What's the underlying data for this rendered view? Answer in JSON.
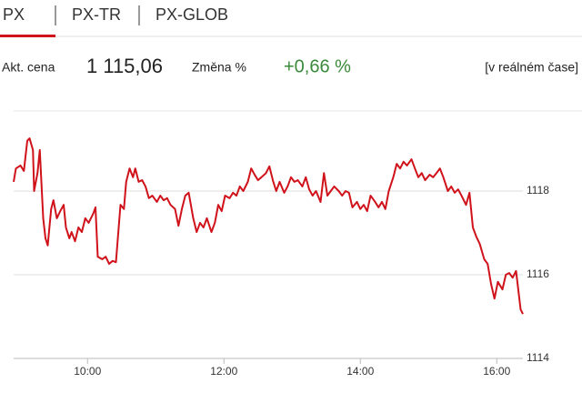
{
  "tabs": [
    "PX",
    "PX-TR",
    "PX-GLOB"
  ],
  "quote": {
    "price_label": "Akt. cena",
    "price": "1 115,06",
    "change_label": "Změna %",
    "change": "+0,66 %",
    "realtime": "[v reálném čase]"
  },
  "chart_data": {
    "type": "line",
    "color": "#d0121b",
    "grid": true,
    "x": [
      535,
      537,
      541,
      544,
      547,
      549,
      552,
      553,
      556,
      558,
      561,
      563,
      565,
      568,
      570,
      573,
      576,
      579,
      581,
      584,
      586,
      589,
      592,
      595,
      598,
      601,
      605,
      607,
      609,
      613,
      616,
      619,
      622,
      625,
      629,
      632,
      634,
      637,
      640,
      642,
      645,
      648,
      651,
      654,
      657,
      661,
      664,
      667,
      670,
      673,
      677,
      680,
      683,
      686,
      689,
      693,
      696,
      699,
      702,
      705,
      709,
      712,
      715,
      718,
      721,
      725,
      728,
      731,
      734,
      737,
      741,
      744,
      747,
      750,
      753,
      757,
      760,
      763,
      766,
      769,
      773,
      776,
      779,
      782,
      785,
      789,
      792,
      795,
      798,
      801,
      805,
      808,
      811,
      814,
      817,
      821,
      824,
      827,
      830,
      833,
      837,
      840,
      843,
      846,
      849,
      853,
      856,
      859,
      862,
      865,
      869,
      872,
      875,
      878,
      881,
      885,
      888,
      891,
      894,
      897,
      901,
      904,
      907,
      910,
      913,
      917,
      920,
      923,
      926,
      929,
      933,
      936,
      939,
      942,
      945,
      949,
      952,
      955,
      958,
      961,
      965,
      968,
      971,
      974,
      977,
      981,
      983
    ],
    "values": [
      1118.22,
      1118.54,
      1118.61,
      1118.48,
      1119.2,
      1119.26,
      1118.98,
      1118,
      1118.43,
      1118.98,
      1117.35,
      1116.87,
      1116.7,
      1117.57,
      1117.78,
      1117.35,
      1117.52,
      1117.67,
      1117.13,
      1116.87,
      1117.02,
      1116.8,
      1117.13,
      1117.02,
      1117.35,
      1117.24,
      1117.46,
      1117.61,
      1116.43,
      1116.37,
      1116.43,
      1116.26,
      1116.33,
      1116.3,
      1117.67,
      1117.57,
      1118.22,
      1118.54,
      1118.33,
      1118.54,
      1118.22,
      1118.26,
      1118.11,
      1117.83,
      1117.89,
      1117.74,
      1117.89,
      1117.78,
      1117.83,
      1117.67,
      1117.57,
      1117.17,
      1117.57,
      1117.89,
      1117.96,
      1117.35,
      1117.02,
      1117.24,
      1117.13,
      1117.35,
      1117.02,
      1117.24,
      1117.67,
      1117.52,
      1117.89,
      1117.83,
      1117.96,
      1117.89,
      1118.11,
      1118,
      1118.22,
      1118.54,
      1118.39,
      1118.26,
      1118.33,
      1118.43,
      1118.59,
      1118.26,
      1118,
      1118.22,
      1117.96,
      1118.11,
      1118.33,
      1118.22,
      1118.26,
      1118.11,
      1118.33,
      1118.04,
      1117.89,
      1118,
      1117.74,
      1118.43,
      1117.89,
      1118,
      1118.11,
      1118,
      1117.89,
      1118,
      1117.96,
      1117.61,
      1117.74,
      1117.57,
      1117.67,
      1117.52,
      1117.89,
      1117.74,
      1117.61,
      1117.74,
      1117.57,
      1118,
      1118.33,
      1118.65,
      1118.54,
      1118.7,
      1118.61,
      1118.76,
      1118.54,
      1118.33,
      1118.43,
      1118.26,
      1118.39,
      1118.33,
      1118.43,
      1118.54,
      1118.33,
      1118,
      1118.11,
      1117.96,
      1118.04,
      1117.89,
      1117.67,
      1117.96,
      1117.13,
      1116.91,
      1116.74,
      1116.37,
      1116.26,
      1115.78,
      1115.43,
      1115.83,
      1115.65,
      1116,
      1116.04,
      1115.93,
      1116.09,
      1115.17,
      1115.06
    ],
    "xlim": [
      535,
      983
    ],
    "ylim": [
      1114,
      1119.9
    ],
    "xticks": [
      {
        "value": 600,
        "label": "10:00"
      },
      {
        "value": 720,
        "label": "12:00"
      },
      {
        "value": 840,
        "label": "14:00"
      },
      {
        "value": 960,
        "label": "16:00"
      }
    ],
    "yticks": [
      1114,
      1116,
      1118
    ]
  }
}
